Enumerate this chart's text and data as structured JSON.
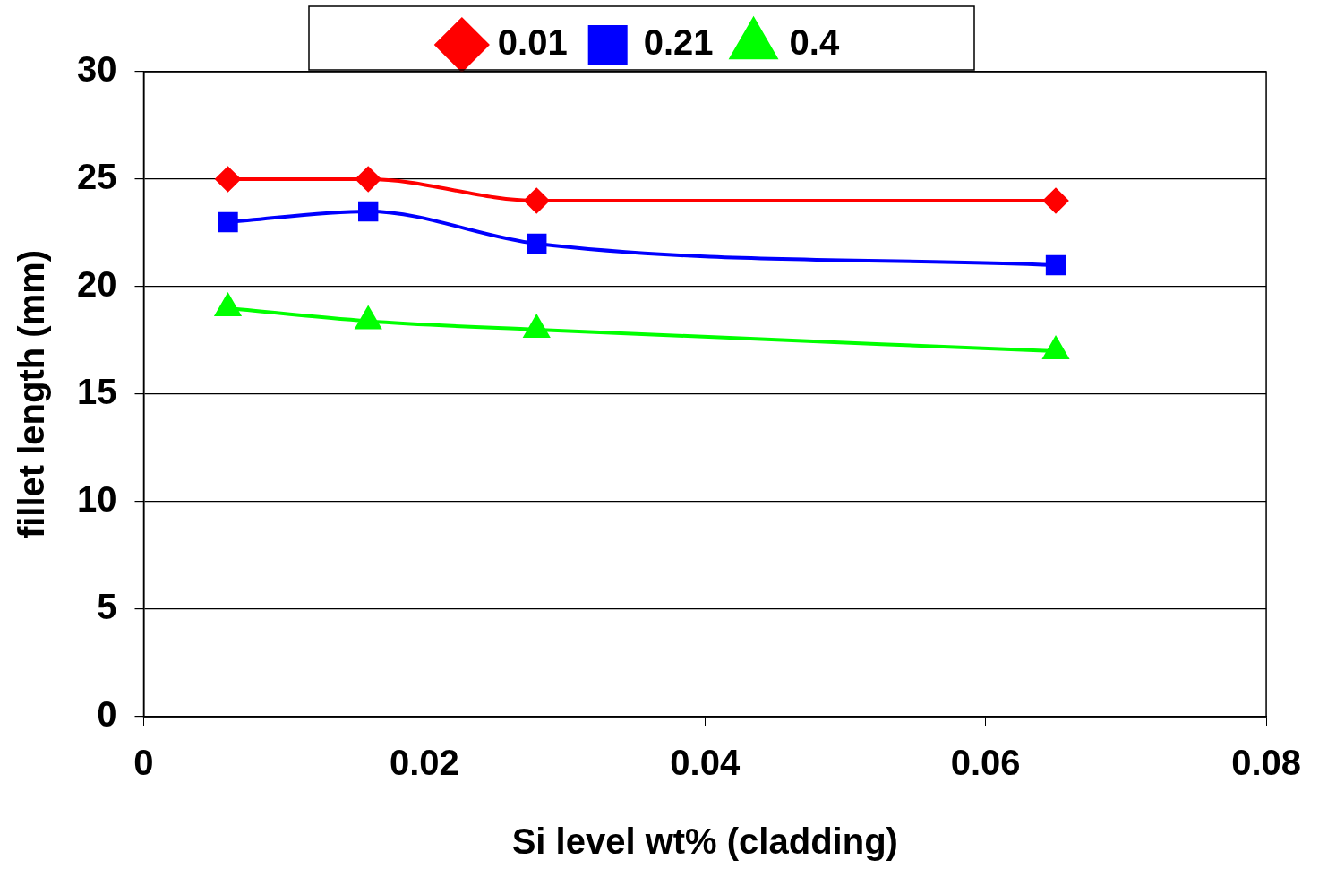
{
  "chart_data": {
    "type": "line",
    "xlabel": "Si level wt% (cladding)",
    "ylabel": "fillet length (mm)",
    "x": [
      0.006,
      0.016,
      0.028,
      0.065
    ],
    "series": [
      {
        "name": "0.01",
        "color": "#ff0000",
        "marker": "diamond",
        "values": [
          25,
          25,
          24,
          24
        ]
      },
      {
        "name": "0.21",
        "color": "#0000ff",
        "marker": "square",
        "values": [
          23,
          23.5,
          22,
          21
        ]
      },
      {
        "name": "0.4",
        "color": "#00ff00",
        "marker": "triangle",
        "values": [
          19,
          18.4,
          18,
          17
        ]
      }
    ],
    "xlim": [
      0,
      0.08
    ],
    "xticks": [
      0,
      0.02,
      0.04,
      0.06,
      0.08
    ],
    "ylim": [
      0,
      30
    ],
    "yticks": [
      0,
      5,
      10,
      15,
      20,
      25,
      30
    ],
    "grid": "y",
    "legend": "top",
    "line_style": "solid"
  }
}
